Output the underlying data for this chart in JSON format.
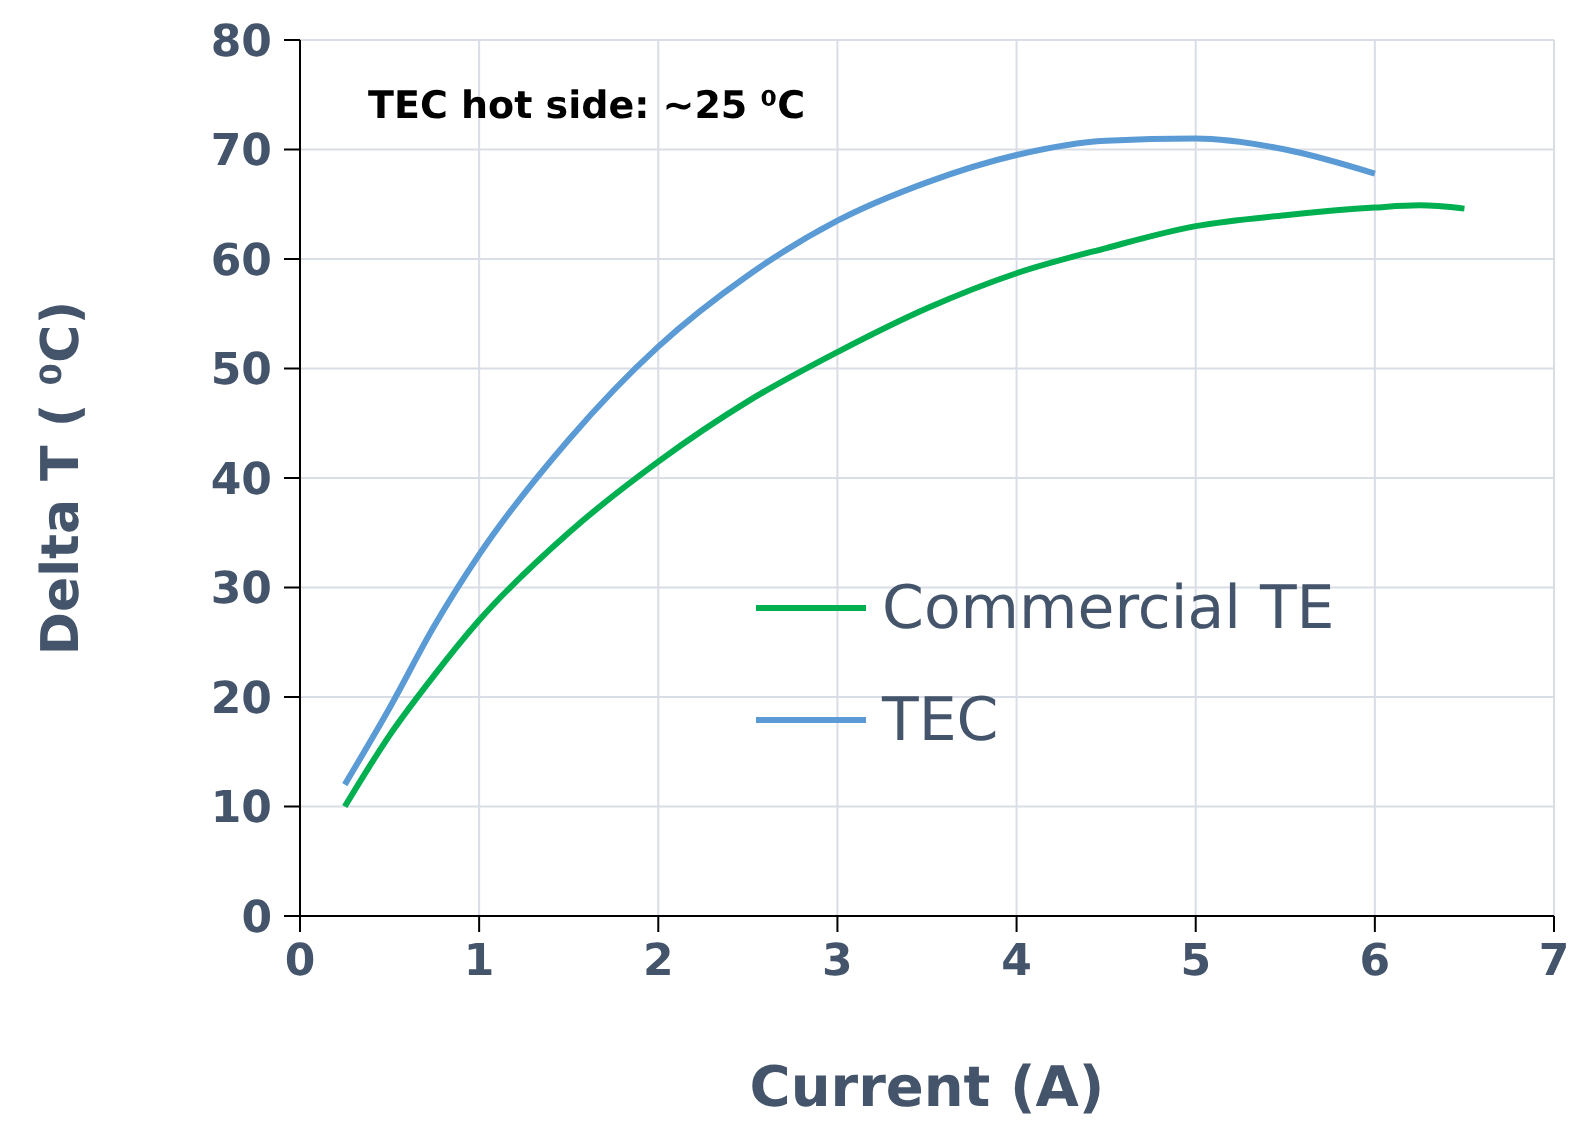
{
  "chart_data": {
    "type": "line",
    "xlabel": "Current (A)",
    "ylabel": "Delta T ( ⁰C)",
    "annotations": [
      "TEC hot side: ~25 ⁰C"
    ],
    "xlim": [
      0,
      7
    ],
    "xticks": [
      0,
      1,
      2,
      3,
      4,
      5,
      6,
      7
    ],
    "ylim": [
      0,
      80
    ],
    "yticks": [
      0,
      10,
      20,
      30,
      40,
      50,
      60,
      70,
      80
    ],
    "grid": true,
    "legend": "bottom right",
    "marker": "none",
    "line_style": "solid",
    "series": [
      {
        "name": "Commercial TE",
        "color": "#00b050",
        "x": [
          0.25,
          0.5,
          0.75,
          1,
          1.5,
          2,
          2.5,
          3,
          3.5,
          4,
          4.5,
          5,
          5.5,
          6,
          6.25,
          6.5
        ],
        "values": [
          10,
          16.5,
          22,
          27,
          35,
          41.5,
          47,
          51.5,
          55.5,
          58.7,
          61,
          63,
          64,
          64.7,
          64.9,
          64.6
        ]
      },
      {
        "name": "TEC",
        "color": "#5b9bd5",
        "x": [
          0.25,
          0.5,
          0.75,
          1,
          1.5,
          2,
          2.5,
          3,
          3.5,
          4,
          4.5,
          5,
          5.5,
          6
        ],
        "values": [
          12,
          19,
          26.5,
          33,
          43.5,
          52,
          58.5,
          63.5,
          67,
          69.5,
          70.8,
          71,
          70,
          67.8
        ]
      }
    ]
  }
}
